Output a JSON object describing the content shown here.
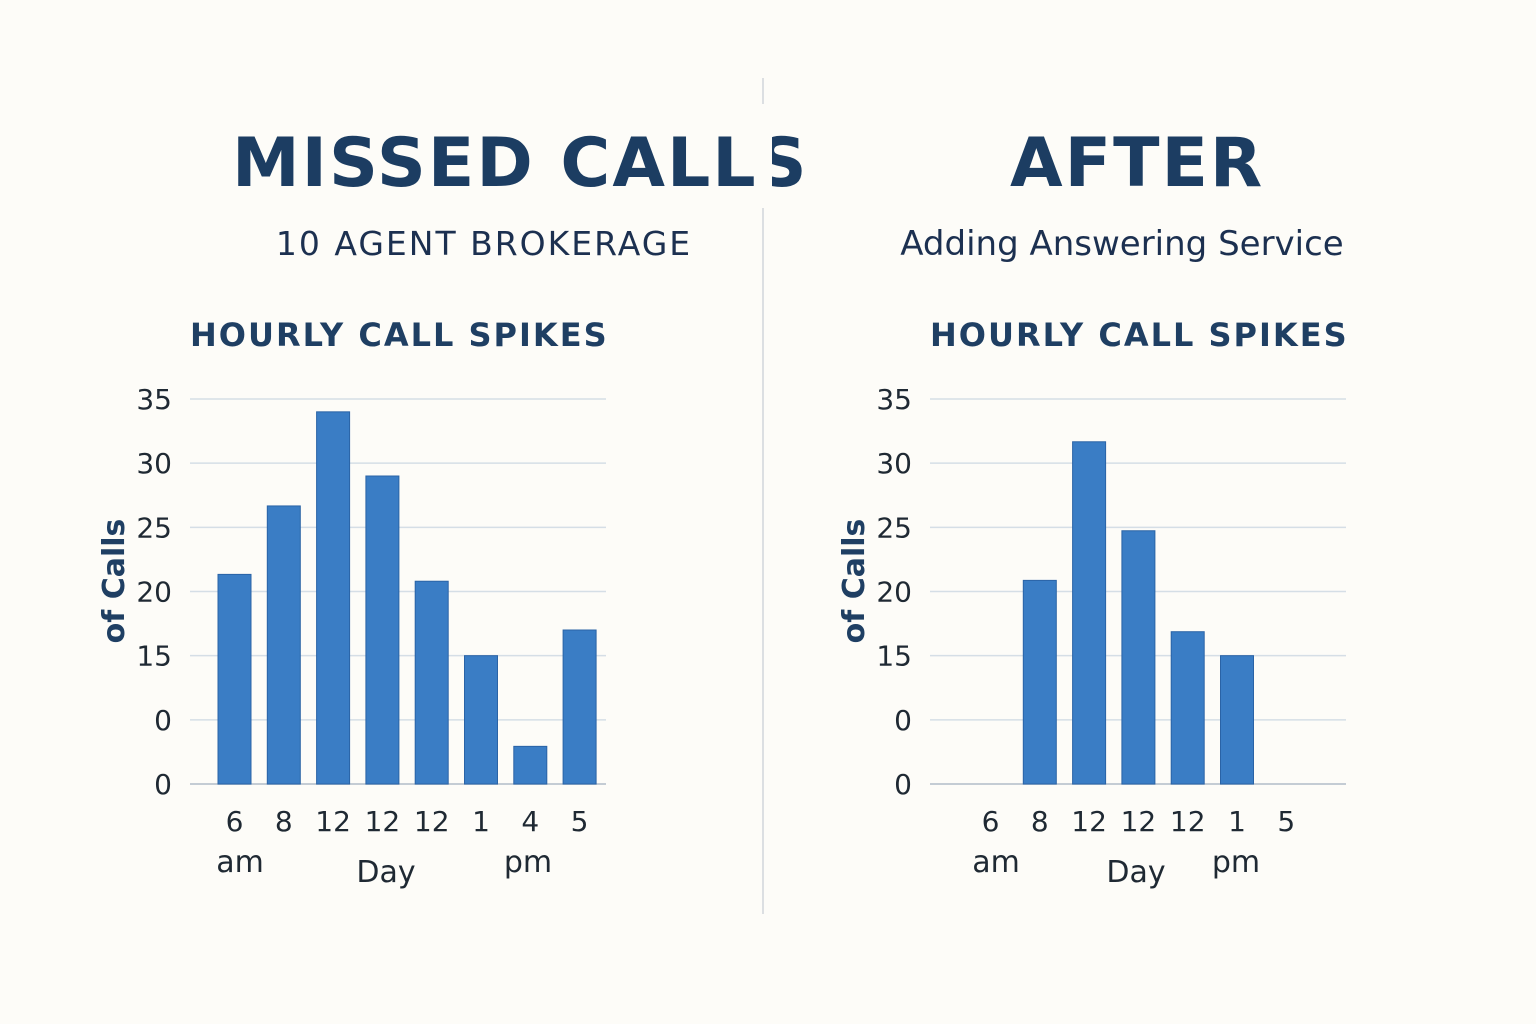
{
  "left_panel": {
    "title": "MISSED CALLS",
    "subtitle": "10 AGENT BROKERAGE"
  },
  "right_panel": {
    "title": "AFTER",
    "subtitle": "Adding Answering Service"
  },
  "colors": {
    "bar": "#3a7dc5",
    "bar_stroke": "#2a63a6",
    "grid": "#d5dee6",
    "title": "#1c3d62"
  },
  "chart_data": [
    {
      "type": "bar",
      "title": "HOURLY CALL SPIKES",
      "ylabel": "of Calls",
      "xlabel": "Day",
      "x_sub_labels": [
        "am",
        "pm"
      ],
      "y_tick_labels": [
        "0",
        "0",
        "15",
        "20",
        "25",
        "30",
        "35"
      ],
      "categories": [
        "6",
        "8",
        "12",
        "12",
        "12",
        "1",
        "4",
        "5"
      ],
      "values": [
        14.5,
        22.5,
        33.5,
        26,
        13.7,
        5,
        -5.6,
        8
      ],
      "ylim": [
        -10,
        35
      ],
      "grid": true
    },
    {
      "type": "bar",
      "title": "HOURLY CALL SPIKES",
      "ylabel": "of Calls",
      "xlabel": "Day",
      "x_sub_labels": [
        "am",
        "pm"
      ],
      "y_tick_labels": [
        "0",
        "0",
        "15",
        "20",
        "25",
        "30",
        "35"
      ],
      "categories": [
        "6",
        "8",
        "12",
        "12",
        "12",
        "1",
        "5"
      ],
      "values": [
        -10,
        13.8,
        30,
        19.6,
        7.8,
        5,
        -10
      ],
      "ylim": [
        -10,
        35
      ],
      "grid": true
    }
  ]
}
